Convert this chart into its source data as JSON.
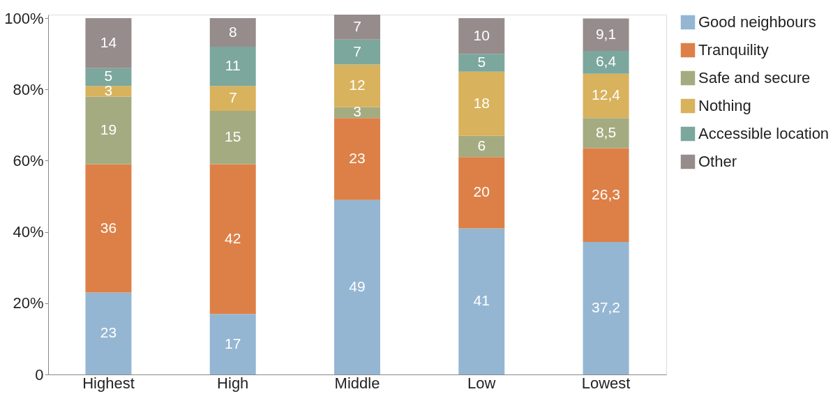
{
  "chart_data": {
    "type": "bar",
    "stacked": true,
    "categories": [
      "Highest",
      "High",
      "Middle",
      "Low",
      "Lowest"
    ],
    "series": [
      {
        "name": "Good neighbours",
        "color": "#94b6d2",
        "values": [
          23,
          17,
          49,
          41,
          37.2
        ],
        "value_labels": [
          "23",
          "17",
          "49",
          "41",
          "37,2"
        ]
      },
      {
        "name": "Tranquility",
        "color": "#dd8047",
        "values": [
          36,
          42,
          23,
          20,
          26.3
        ],
        "value_labels": [
          "36",
          "42",
          "23",
          "20",
          "26,3"
        ]
      },
      {
        "name": "Safe and secure",
        "color": "#a5ab81",
        "values": [
          19,
          15,
          3,
          6,
          8.5
        ],
        "value_labels": [
          "19",
          "15",
          "3",
          "6",
          "8,5"
        ]
      },
      {
        "name": "Nothing",
        "color": "#d8b25c",
        "values": [
          3,
          7,
          12,
          18,
          12.4
        ],
        "value_labels": [
          "3",
          "7",
          "12",
          "18",
          "12,4"
        ]
      },
      {
        "name": "Accessible location",
        "color": "#7ba79d",
        "values": [
          5,
          11,
          7,
          5,
          6.4
        ],
        "value_labels": [
          "5",
          "11",
          "7",
          "5",
          "6,4"
        ]
      },
      {
        "name": "Other",
        "color": "#968c8c",
        "values": [
          14,
          8,
          7,
          10,
          9.1
        ],
        "value_labels": [
          "14",
          "8",
          "7",
          "10",
          "9,1"
        ]
      }
    ],
    "ylim": [
      0,
      101
    ],
    "yticks": [
      0,
      {
        "value": 20,
        "label": "20%"
      },
      {
        "value": 40,
        "label": "40%"
      },
      {
        "value": 60,
        "label": "60%"
      },
      {
        "value": 80,
        "label": "80%"
      },
      {
        "value": 100,
        "label": "100%"
      }
    ],
    "grid": false,
    "legend": "right"
  }
}
